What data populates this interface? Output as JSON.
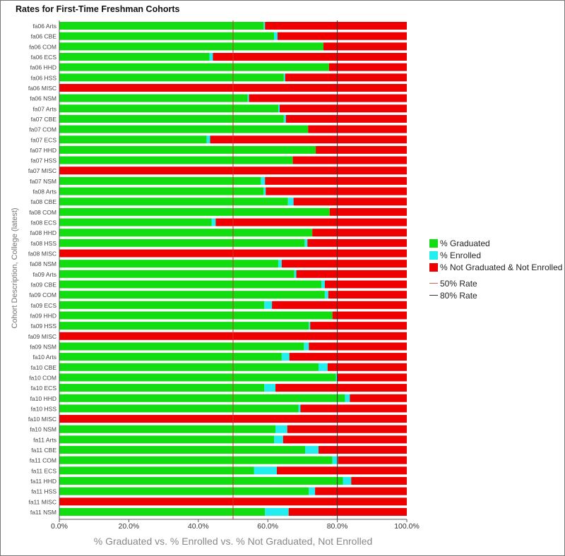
{
  "chart_data": {
    "type": "bar",
    "orientation": "horizontal",
    "stacked": true,
    "title": "Rates for First-Time Freshman Cohorts",
    "xlabel": "% Graduated vs. % Enrolled vs. % Not Graduated, Not Enrolled",
    "ylabel": "Cohort Description, College (latest)",
    "xlim": [
      0,
      100
    ],
    "xticks": [
      "0.0%",
      "20.0%",
      "40.0%",
      "60.0%",
      "80.0%",
      "100.0%"
    ],
    "categories": [
      "fa06 Arts",
      "fa06 CBE",
      "fa06 COM",
      "fa06 ECS",
      "fa06 HHD",
      "fa06 HSS",
      "fa06 MISC",
      "fa06 NSM",
      "fa07 Arts",
      "fa07 CBE",
      "fa07 COM",
      "fa07 ECS",
      "fa07 HHD",
      "fa07 HSS",
      "fa07 MISC",
      "fa07 NSM",
      "fa08 Arts",
      "fa08 CBE",
      "fa08 COM",
      "fa08 ECS",
      "fa08 HHD",
      "fa08 HSS",
      "fa08 MISC",
      "fa08 NSM",
      "fa09 Arts",
      "fa09 CBE",
      "fa09 COM",
      "fa09 ECS",
      "fa09 HHD",
      "fa09 HSS",
      "fa09 MISC",
      "fa09 NSM",
      "fa10 Arts",
      "fa10 CBE",
      "fa10 COM",
      "fa10 ECS",
      "fa10 HHD",
      "fa10 HSS",
      "fa10 MISC",
      "fa10 NSM",
      "fa11 Arts",
      "fa11 CBE",
      "fa11 COM",
      "fa11 ECS",
      "fa11 HHD",
      "fa11 HSS",
      "fa11 MISC",
      "fa11 NSM"
    ],
    "series": [
      {
        "name": "% Graduated",
        "color": "#11dd11",
        "values": [
          58.8,
          61.8,
          76.0,
          43.2,
          77.6,
          64.6,
          0,
          54.2,
          63.0,
          64.6,
          71.6,
          42.4,
          73.8,
          67.2,
          0,
          58.0,
          58.8,
          65.8,
          77.8,
          43.8,
          72.8,
          70.6,
          0,
          63.0,
          67.6,
          75.4,
          76.4,
          59.0,
          78.6,
          71.8,
          0,
          70.4,
          64.0,
          74.6,
          79.6,
          59.0,
          82.2,
          68.8,
          0,
          62.2,
          61.8,
          70.8,
          78.6,
          56.0,
          81.6,
          71.8,
          0,
          59.2
        ]
      },
      {
        "name": "% Enrolled",
        "color": "#22eeee",
        "values": [
          0.4,
          1.0,
          0,
          1.0,
          0,
          0.4,
          0,
          0.4,
          0.4,
          0.6,
          0,
          1.0,
          0,
          0,
          0,
          1.2,
          0.6,
          1.6,
          0,
          1.2,
          0,
          0.8,
          0,
          1.0,
          0.6,
          1.0,
          1.0,
          2.2,
          0,
          0.4,
          0,
          1.4,
          2.2,
          2.6,
          0.4,
          3.2,
          1.4,
          0.6,
          0,
          3.4,
          2.6,
          3.8,
          1.6,
          6.6,
          2.4,
          1.8,
          0,
          6.8
        ]
      },
      {
        "name": "% Not Graduated & Not Enrolled",
        "color": "#ee0000",
        "values": [
          40.8,
          37.2,
          24.0,
          55.8,
          22.4,
          35.0,
          100,
          45.4,
          36.6,
          34.8,
          28.4,
          56.6,
          26.2,
          32.8,
          100,
          40.8,
          40.6,
          32.6,
          22.2,
          55.0,
          27.2,
          28.6,
          100,
          36.0,
          31.8,
          23.6,
          22.6,
          38.8,
          21.4,
          27.8,
          100,
          28.2,
          33.8,
          22.8,
          20.0,
          37.8,
          16.4,
          30.6,
          100,
          34.4,
          35.6,
          25.4,
          19.8,
          37.4,
          16.0,
          26.4,
          100,
          34.0
        ]
      }
    ],
    "reference_lines": [
      {
        "name": "50% Rate",
        "value": 50,
        "color": "#cc3333"
      },
      {
        "name": "80% Rate",
        "value": 80,
        "color": "#333333"
      }
    ],
    "legend_position": "right",
    "grid": false
  }
}
